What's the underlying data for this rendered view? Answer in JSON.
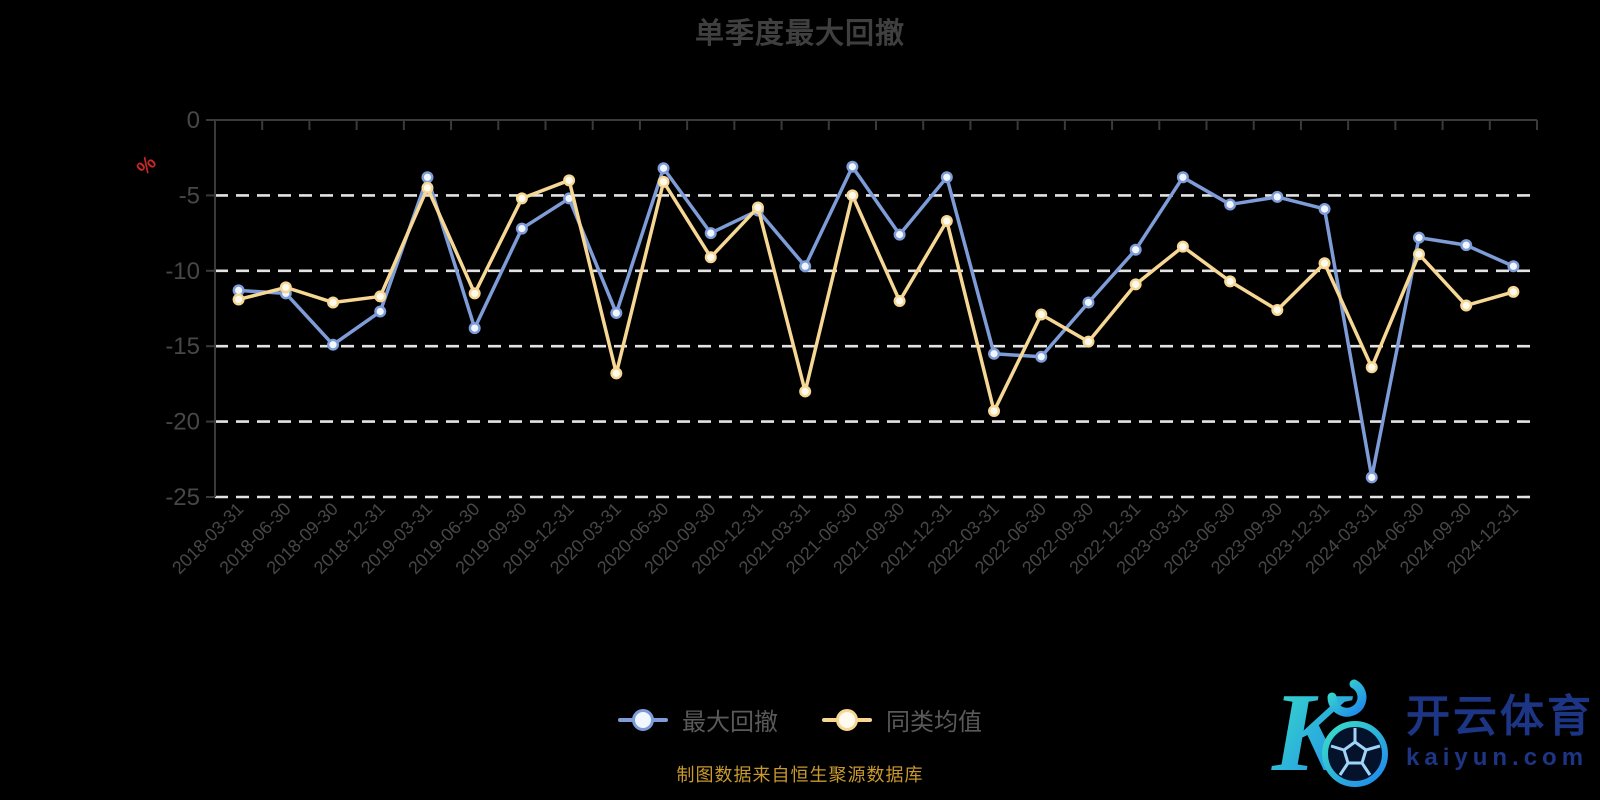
{
  "title": "单季度最大回撤",
  "footer": "制图数据来自恒生聚源数据库",
  "legend": [
    {
      "label": "最大回撤",
      "color": "#7e9cd8"
    },
    {
      "label": "同类均值",
      "color": "#f6d794"
    }
  ],
  "watermark": {
    "logo_letter": "K",
    "brand": "开云体育",
    "domain": "kaiyun.com",
    "gradient_start": "#3ae0c6",
    "gradient_end": "#1f86ee",
    "text_color": "#1c3584"
  },
  "colors": {
    "background": "#000000",
    "title_text": "#3f3f3f",
    "axis_line": "#3a3a3a",
    "axis_label": "#474747",
    "grid_line": "#e3e3e3",
    "unit_label": "#c62828",
    "legend_text": "#5a5a5a",
    "footer_text": "#c9992e"
  },
  "chart_data": {
    "type": "line",
    "title": "单季度最大回撤",
    "xlabel": "",
    "ylabel": "%",
    "ylim": [
      -25,
      0
    ],
    "yticks": [
      0,
      -5,
      -10,
      -15,
      -20,
      -25
    ],
    "grid": "horizontal dashed, zero line solid at top",
    "legend_position": "bottom",
    "x_label_rotation": -45,
    "categories": [
      "2018-03-31",
      "2018-06-30",
      "2018-09-30",
      "2018-12-31",
      "2019-03-31",
      "2019-06-30",
      "2019-09-30",
      "2019-12-31",
      "2020-03-31",
      "2020-06-30",
      "2020-09-30",
      "2020-12-31",
      "2021-03-31",
      "2021-06-30",
      "2021-09-30",
      "2021-12-31",
      "2022-03-31",
      "2022-06-30",
      "2022-09-30",
      "2022-12-31",
      "2023-03-31",
      "2023-06-30",
      "2023-09-30",
      "2023-12-31",
      "2024-03-31",
      "2024-06-30",
      "2024-09-30",
      "2024-12-31"
    ],
    "series": [
      {
        "name": "最大回撤",
        "color": "#7e9cd8",
        "marker_fill": "#f2f7ff",
        "values": [
          -11.3,
          -11.5,
          -14.9,
          -12.7,
          -3.8,
          -13.8,
          -7.2,
          -5.2,
          -12.8,
          -3.2,
          -7.5,
          -6.0,
          -9.7,
          -3.1,
          -7.6,
          -3.8,
          -15.5,
          -15.7,
          -12.1,
          -8.6,
          -3.8,
          -5.6,
          -5.1,
          -5.9,
          -23.7,
          -7.8,
          -8.3,
          -9.7
        ]
      },
      {
        "name": "同类均值",
        "color": "#f6d794",
        "marker_fill": "#fffaf0",
        "values": [
          -11.9,
          -11.1,
          -12.1,
          -11.7,
          -4.5,
          -11.5,
          -5.2,
          -4.0,
          -16.8,
          -4.1,
          -9.1,
          -5.8,
          -18.0,
          -5.0,
          -12.0,
          -6.7,
          -19.3,
          -12.9,
          -14.7,
          -10.9,
          -8.4,
          -10.7,
          -12.6,
          -9.5,
          -16.4,
          -8.9,
          -12.3,
          -11.4
        ]
      }
    ]
  }
}
